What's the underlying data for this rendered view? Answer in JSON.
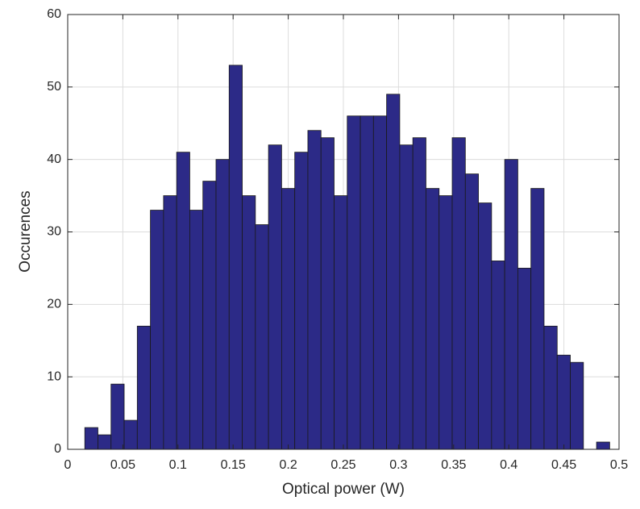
{
  "chart_data": {
    "type": "histogram",
    "xlabel": "Optical power (W)",
    "ylabel": "Occurences",
    "bins": [
      0.0155,
      0.0274,
      0.0393,
      0.0512,
      0.0631,
      0.075,
      0.0869,
      0.0988,
      0.1107,
      0.1226,
      0.1345,
      0.1464,
      0.1583,
      0.1702,
      0.1821,
      0.194,
      0.2059,
      0.2178,
      0.2297,
      0.2416,
      0.2535,
      0.2654,
      0.2773,
      0.2892,
      0.3011,
      0.313,
      0.3249,
      0.3368,
      0.3487,
      0.3606,
      0.3725,
      0.3844,
      0.3963,
      0.4082,
      0.4201,
      0.432,
      0.4439,
      0.4558,
      0.4677,
      0.4796,
      0.4915
    ],
    "values": [
      3,
      2,
      9,
      4,
      17,
      33,
      35,
      41,
      33,
      37,
      40,
      53,
      35,
      31,
      42,
      36,
      41,
      44,
      43,
      35,
      46,
      46,
      46,
      49,
      42,
      43,
      36,
      35,
      43,
      38,
      34,
      26,
      40,
      25,
      36,
      17,
      13,
      12,
      0,
      1
    ],
    "color": "#2c2a87",
    "xlim": [
      0,
      0.5
    ],
    "xticks": [
      0,
      0.05,
      0.1,
      0.15,
      0.2,
      0.25,
      0.3,
      0.35,
      0.4,
      0.45,
      0.5
    ],
    "ylim": [
      0,
      60
    ],
    "yticks": [
      0,
      10,
      20,
      30,
      40,
      50,
      60
    ],
    "grid": true
  }
}
